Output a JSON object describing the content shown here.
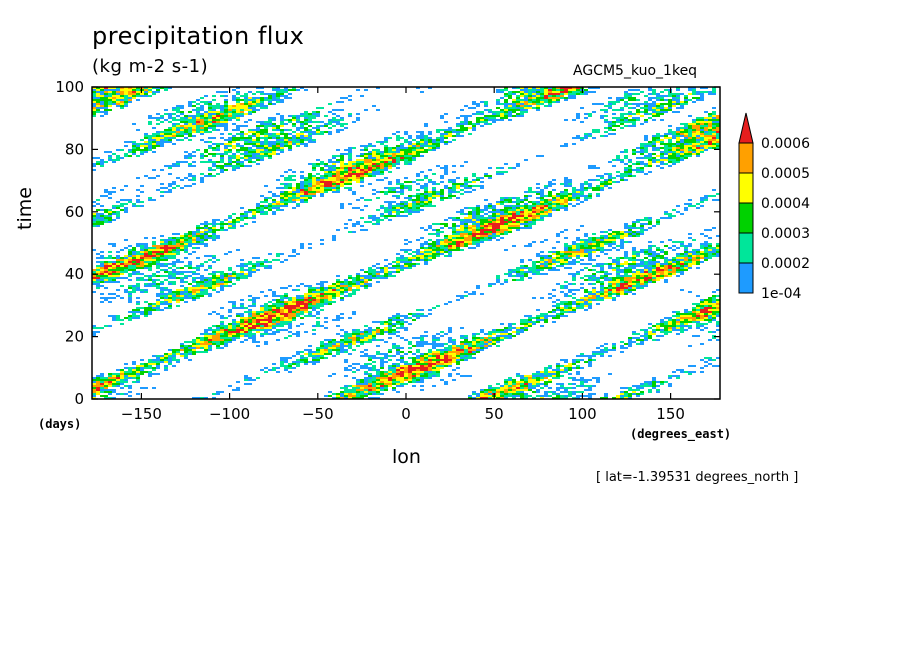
{
  "chart_data": {
    "type": "heatmap",
    "title": "precipitation flux",
    "subtitle": "(kg m-2 s-1)",
    "run_label": "AGCM5_kuo_1keq",
    "xlabel": "lon",
    "ylabel": "time",
    "x_units": "(degrees_east)",
    "y_units": "(days)",
    "xlim": [
      -178,
      178
    ],
    "ylim": [
      0,
      100
    ],
    "x_ticks": [
      -150,
      -100,
      -50,
      0,
      50,
      100,
      150
    ],
    "y_ticks": [
      0,
      20,
      40,
      60,
      80,
      100
    ],
    "annotation": "[ lat=-1.39531 degrees_north ]",
    "colorbar": {
      "labels": [
        "1e-04",
        "0.0002",
        "0.0003",
        "0.0004",
        "0.0005",
        "0.0006"
      ],
      "colors": [
        "#1e9bff",
        "#00e69a",
        "#00d200",
        "#ffff00",
        "#ffa000",
        "#e61e1e"
      ]
    },
    "grid": false
  }
}
